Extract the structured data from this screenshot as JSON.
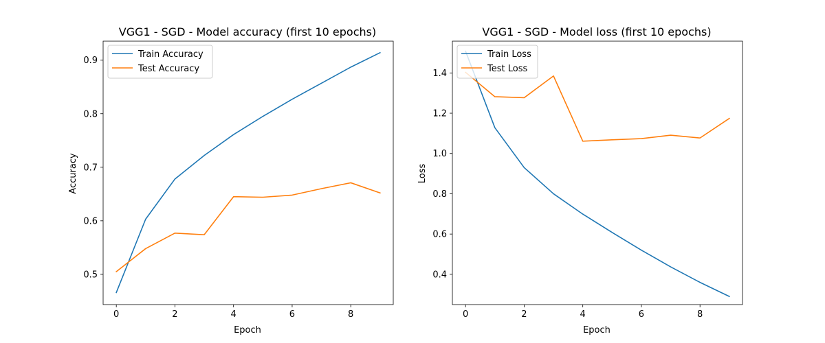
{
  "chart_data": [
    {
      "type": "line",
      "title": "VGG1 - SGD - Model accuracy (first 10 epochs)",
      "xlabel": "Epoch",
      "ylabel": "Accuracy",
      "x": [
        0,
        1,
        2,
        3,
        4,
        5,
        6,
        7,
        8,
        9
      ],
      "xlim": [
        -0.45,
        9.45
      ],
      "ylim": [
        0.4435,
        0.9355
      ],
      "xticks": [
        0,
        2,
        4,
        6,
        8
      ],
      "yticks": [
        0.5,
        0.6,
        0.7,
        0.8,
        0.9
      ],
      "ytick_labels": [
        "0.5",
        "0.6",
        "0.7",
        "0.8",
        "0.9"
      ],
      "grid": false,
      "legend": "upper-left",
      "series": [
        {
          "name": "Train Accuracy",
          "color": "#1f77b4",
          "values": [
            0.466,
            0.603,
            0.678,
            0.722,
            0.761,
            0.795,
            0.827,
            0.857,
            0.887,
            0.914
          ]
        },
        {
          "name": "Test Accuracy",
          "color": "#ff7f0e",
          "values": [
            0.505,
            0.548,
            0.577,
            0.574,
            0.645,
            0.644,
            0.648,
            0.66,
            0.671,
            0.652
          ]
        }
      ]
    },
    {
      "type": "line",
      "title": "VGG1 - SGD - Model loss (first 10 epochs)",
      "xlabel": "Epoch",
      "ylabel": "Loss",
      "x": [
        0,
        1,
        2,
        3,
        4,
        5,
        6,
        7,
        8,
        9
      ],
      "xlim": [
        -0.45,
        9.45
      ],
      "ylim": [
        0.2497,
        1.5578
      ],
      "xticks": [
        0,
        2,
        4,
        6,
        8
      ],
      "yticks": [
        0.4,
        0.6,
        0.8,
        1.0,
        1.2,
        1.4
      ],
      "ytick_labels": [
        "0.4",
        "0.6",
        "0.8",
        "1.0",
        "1.2",
        "1.4"
      ],
      "grid": false,
      "legend": "upper-left",
      "series": [
        {
          "name": "Train Loss",
          "color": "#1f77b4",
          "values": [
            1.508,
            1.128,
            0.93,
            0.8,
            0.699,
            0.608,
            0.52,
            0.437,
            0.36,
            0.29
          ]
        },
        {
          "name": "Test Loss",
          "color": "#ff7f0e",
          "values": [
            1.403,
            1.282,
            1.277,
            1.385,
            1.061,
            1.068,
            1.074,
            1.091,
            1.077,
            1.174
          ]
        }
      ]
    }
  ]
}
